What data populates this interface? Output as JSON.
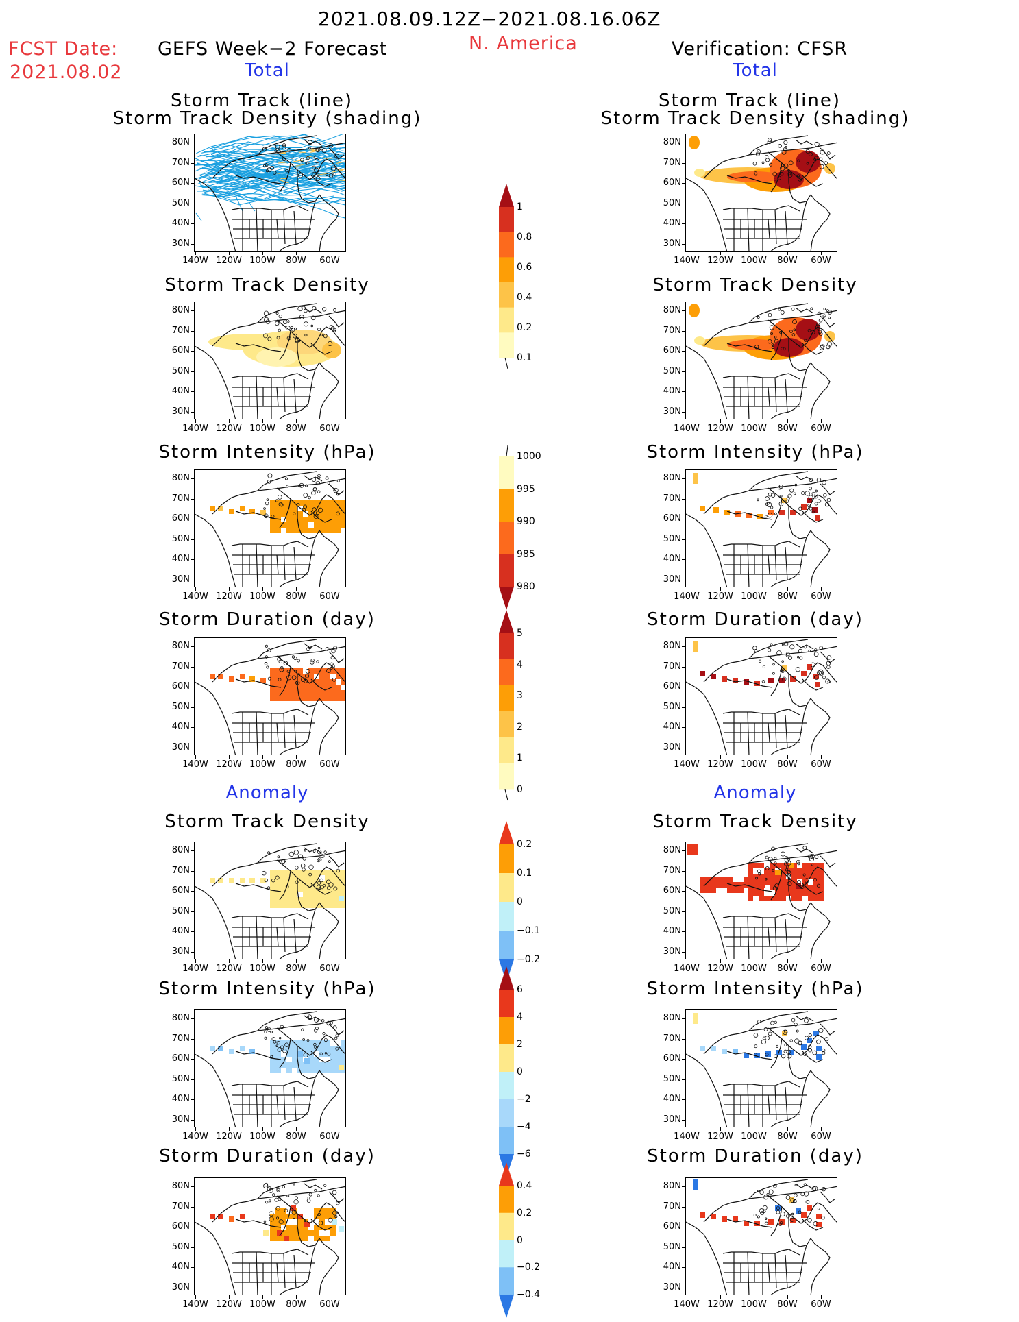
{
  "header": {
    "date_range": "2021.08.09.12Z−2021.08.16.06Z",
    "fcst_label": "FCST Date:",
    "fcst_date": "2021.08.02",
    "left_title": "GEFS Week−2 Forecast",
    "region": "N. America",
    "right_title": "Verification: CFSR",
    "total_label": "Total",
    "anomaly_label": "Anomaly"
  },
  "panel_titles": {
    "track_line": "Storm Track (line)",
    "track_density_shading": "Storm Track Density (shading)",
    "track_density": "Storm Track Density",
    "intensity": "Storm Intensity (hPa)",
    "duration": "Storm Duration (day)"
  },
  "axes": {
    "lat_labels": [
      "80N",
      "70N",
      "60N",
      "50N",
      "40N",
      "30N"
    ],
    "lon_labels": [
      "140W",
      "120W",
      "100W",
      "80W",
      "60W"
    ]
  },
  "colorbars": {
    "density_total": {
      "labels": [
        "1",
        "0.8",
        "0.6",
        "0.4",
        "0.2",
        "0.1"
      ],
      "colors": [
        "#a50f15",
        "#d7301f",
        "#fc6a1d",
        "#fd9e06",
        "#fdc348",
        "#fee98a",
        "#fffbc0"
      ]
    },
    "intensity_total": {
      "labels": [
        "1000",
        "995",
        "990",
        "985",
        "980"
      ],
      "colors": [
        "#fffbc0",
        "#fd9e06",
        "#fc6a1d",
        "#d7301f",
        "#a50f15"
      ]
    },
    "duration_total": {
      "labels": [
        "5",
        "4",
        "3",
        "2",
        "1",
        "0"
      ],
      "colors": [
        "#a50f15",
        "#d7301f",
        "#fc6a1d",
        "#fd9e06",
        "#fdc348",
        "#fee98a",
        "#fffbc0"
      ]
    },
    "density_anom": {
      "labels": [
        "0.2",
        "0.1",
        "0",
        "−0.1",
        "−0.2"
      ],
      "colors": [
        "#e8381c",
        "#fd9e06",
        "#fee98a",
        "#c0f0f8",
        "#7ec0f6",
        "#2b78e4"
      ]
    },
    "intensity_anom": {
      "labels": [
        "6",
        "4",
        "2",
        "0",
        "−2",
        "−4",
        "−6"
      ],
      "colors": [
        "#a50f15",
        "#e8381c",
        "#fd9e06",
        "#fee98a",
        "#c0f0f8",
        "#a8d8fa",
        "#7ec0f6",
        "#2b78e4"
      ]
    },
    "duration_anom": {
      "labels": [
        "0.4",
        "0.2",
        "0",
        "−0.2",
        "−0.4"
      ],
      "colors": [
        "#e8381c",
        "#fd9e06",
        "#fee98a",
        "#c0f0f8",
        "#7ec0f6",
        "#2b78e4"
      ]
    }
  }
}
